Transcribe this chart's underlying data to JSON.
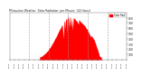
{
  "title": "Milwaukee Weather  Solar Radiation  per Minute  (24 Hours)",
  "background_color": "#ffffff",
  "bar_color": "#ff0000",
  "grid_color": "#999999",
  "yticks": [
    100,
    200,
    300,
    400,
    500,
    600,
    700,
    800
  ],
  "ymax": 900,
  "legend_label": "Solar Rad",
  "num_minutes": 1440,
  "peak_minute": 750,
  "sigma": 160,
  "rise_minute": 370,
  "set_minute": 1130
}
